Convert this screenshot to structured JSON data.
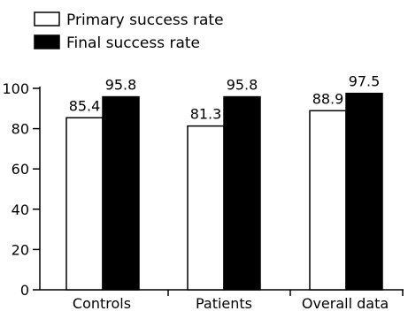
{
  "chart_data": {
    "type": "bar",
    "categories": [
      "Controls",
      "Patients",
      "Overall data"
    ],
    "series": [
      {
        "name": "Primary success rate",
        "values": [
          85.4,
          81.3,
          88.9
        ],
        "color": "#ffffff"
      },
      {
        "name": "Final success rate",
        "values": [
          95.8,
          95.8,
          97.5
        ],
        "color": "#000000"
      }
    ],
    "data_labels": [
      [
        "85.4",
        "81.3",
        "88.9"
      ],
      [
        "95.8",
        "95.8",
        "97.5"
      ]
    ],
    "yticks": [
      0,
      20,
      40,
      60,
      80,
      100
    ],
    "ylim": [
      0,
      100
    ],
    "legend_position": "top-left",
    "grid": false
  }
}
